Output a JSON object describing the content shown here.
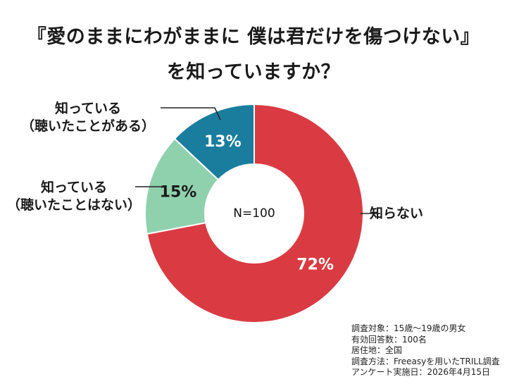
{
  "chart_data": {
    "type": "donut",
    "title_line1": "『愛のままにわがままに 僕は君だけを傷つけない』",
    "title_line2": "を知っていますか？",
    "center_label": "N=100",
    "slices": [
      {
        "name": "知らない",
        "value": 72,
        "label": "72%",
        "color": "#da3b42"
      },
      {
        "name_line1": "知っている",
        "name_line2": "（聴いたことはない）",
        "value": 15,
        "label": "15%",
        "color": "#8fd1ad"
      },
      {
        "name_line1": "知っている",
        "name_line2": "（聴いたことがある）",
        "value": 13,
        "label": "13%",
        "color": "#1a7d9e"
      }
    ]
  },
  "notes": [
    "調査対象：15歳～19歳の男女",
    "有効回答数：100名",
    "居住地：全国",
    "調査方法：Freeasyを用いたTRILL調査",
    "アンケート実施日：2026年4月15日"
  ]
}
